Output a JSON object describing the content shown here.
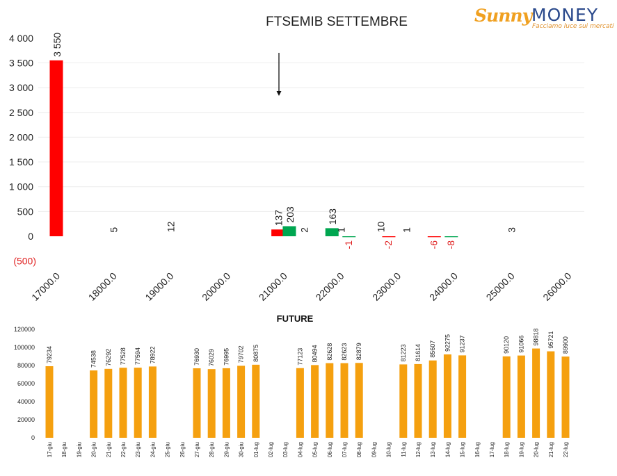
{
  "logo": {
    "brand_part1": "Sunny",
    "brand_part2": "MONEY",
    "tagline": "Facciamo luce sui mercati"
  },
  "chart_data": [
    {
      "type": "bar",
      "title": "FTSEMIB SETTEMBRE",
      "ylim": [
        -500,
        4000
      ],
      "y_ticks": [
        "4 000",
        "3 500",
        "3 000",
        "2 500",
        "2 000",
        "1 500",
        "1 000",
        "500",
        "0",
        "(500)"
      ],
      "x_ticks": [
        "17000.0",
        "18000.0",
        "19000.0",
        "20000.0",
        "21000.0",
        "22000.0",
        "23000.0",
        "24000.0",
        "25000.0",
        "26000.0"
      ],
      "grid": true,
      "bars": [
        {
          "strike": 17000,
          "value": 3550,
          "label": "3 550",
          "color": "#ff0000"
        },
        {
          "strike": 18000,
          "value": 5,
          "label": "5",
          "color": "#ff0000"
        },
        {
          "strike": 19000,
          "value": 12,
          "label": "12",
          "color": "#ff0000"
        },
        {
          "strike": 20900,
          "value": 137,
          "label": "137",
          "color": "#ff0000"
        },
        {
          "strike": 21100,
          "value": 203,
          "label": "203",
          "color": "#00a650"
        },
        {
          "strike": 21350,
          "value": 2,
          "label": "2",
          "color": "#00a650"
        },
        {
          "strike": 21850,
          "value": 163,
          "label": "163",
          "color": "#00a650"
        },
        {
          "strike": 22000,
          "value": 1,
          "label": "1",
          "color": "#00a650"
        },
        {
          "strike": 22150,
          "value": -1,
          "label": "-1",
          "color": "#00a650"
        },
        {
          "strike": 22700,
          "value": 10,
          "label": "10",
          "color": "#ff0000"
        },
        {
          "strike": 22850,
          "value": -2,
          "label": "-2",
          "color": "#ff0000"
        },
        {
          "strike": 23150,
          "value": 1,
          "label": "1",
          "color": "#ff0000"
        },
        {
          "strike": 23650,
          "value": -6,
          "label": "-6",
          "color": "#ff0000"
        },
        {
          "strike": 23950,
          "value": -8,
          "label": "-8",
          "color": "#00a650"
        },
        {
          "strike": 25000,
          "value": 3,
          "label": "3",
          "color": "#ff0000"
        }
      ],
      "annotation": {
        "type": "arrow-down",
        "strike": 21000
      }
    },
    {
      "type": "bar",
      "title": "FUTURE",
      "ylim": [
        0,
        120000
      ],
      "y_ticks": [
        "120000",
        "100000",
        "80000",
        "60000",
        "40000",
        "20000",
        "0"
      ],
      "grid": false,
      "bar_color": "#f5a00f",
      "categories": [
        "17-giu",
        "18-giu",
        "19-giu",
        "20-giu",
        "21-giu",
        "22-giu",
        "23-giu",
        "24-giu",
        "25-giu",
        "26-giu",
        "27-giu",
        "28-giu",
        "29-giu",
        "30-giu",
        "01-lug",
        "02-lug",
        "03-lug",
        "04-lug",
        "05-lug",
        "06-lug",
        "07-lug",
        "08-lug",
        "09-lug",
        "10-lug",
        "11-lug",
        "12-lug",
        "13-lug",
        "14-lug",
        "15-lug",
        "16-lug",
        "17-lug",
        "18-lug",
        "19-lug",
        "20-lug",
        "21-lug",
        "22-lug"
      ],
      "values": [
        79234,
        null,
        null,
        74538,
        76292,
        77528,
        77594,
        78922,
        null,
        null,
        76930,
        76029,
        76995,
        79702,
        80875,
        null,
        null,
        77123,
        80494,
        82628,
        82623,
        82879,
        null,
        null,
        81223,
        81614,
        85607,
        92275,
        91237,
        null,
        null,
        90120,
        91066,
        98818,
        95721,
        89900
      ]
    }
  ]
}
